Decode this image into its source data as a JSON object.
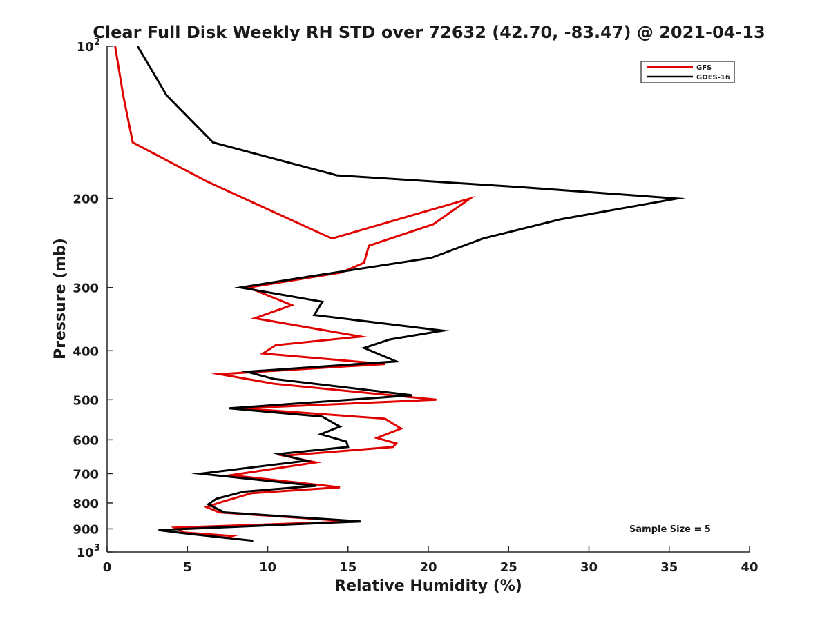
{
  "chart_data": {
    "type": "line",
    "title": "Clear Full Disk Weekly RH STD over 72632 (42.70, -83.47) @ 2021-04-13",
    "xlabel": "Relative Humidity (%)",
    "ylabel": "Pressure (mb)",
    "xlim": [
      0,
      40
    ],
    "ylim": [
      100,
      1000
    ],
    "yscale": "log",
    "y_reversed": true,
    "grid": false,
    "legend_position": "top-right",
    "x_ticks": [
      "0",
      "5",
      "10",
      "15",
      "20",
      "25",
      "30",
      "35",
      "40"
    ],
    "y_ticks": [
      {
        "value": 100,
        "base": "10",
        "exp": "2"
      },
      {
        "value": 200,
        "label": "200"
      },
      {
        "value": 300,
        "label": "300"
      },
      {
        "value": 400,
        "label": "400"
      },
      {
        "value": 500,
        "label": "500"
      },
      {
        "value": 600,
        "label": "600"
      },
      {
        "value": 700,
        "label": "700"
      },
      {
        "value": 800,
        "label": "800"
      },
      {
        "value": 900,
        "label": "900"
      },
      {
        "value": 1000,
        "base": "10",
        "exp": "3"
      }
    ],
    "series": [
      {
        "name": "GFS",
        "color": "#e00000",
        "x": [
          0.5,
          1.0,
          1.6,
          6.2,
          14.0,
          22.6,
          20.3,
          16.3,
          16.0,
          14.6,
          8.8,
          11.5,
          9.2,
          15.8,
          10.5,
          9.7,
          17.3,
          7.0,
          10.4,
          20.5,
          8.4,
          17.3,
          18.3,
          16.8,
          18.0,
          17.8,
          11.0,
          13.0,
          7.7,
          14.5,
          9.0,
          7.2,
          6.2,
          7.0,
          15.3,
          4.2,
          4.8,
          7.8,
          7.3
        ],
        "y": [
          100,
          125,
          155,
          185,
          240,
          200,
          225,
          248,
          268,
          280,
          300,
          325,
          345,
          375,
          390,
          405,
          425,
          445,
          465,
          500,
          520,
          545,
          570,
          595,
          610,
          620,
          645,
          665,
          705,
          745,
          765,
          795,
          815,
          835,
          870,
          895,
          915,
          930,
          940
        ]
      },
      {
        "name": "GOES-16",
        "color": "#000000",
        "x": [
          1.9,
          3.7,
          6.6,
          14.3,
          25.8,
          35.5,
          28.2,
          23.4,
          20.2,
          12.7,
          8.3,
          13.4,
          12.9,
          20.9,
          17.6,
          16.0,
          18.0,
          8.7,
          10.4,
          19.0,
          7.6,
          13.4,
          14.5,
          13.3,
          14.9,
          15.0,
          10.7,
          12.4,
          5.8,
          13.0,
          8.5,
          6.8,
          6.3,
          7.3,
          15.8,
          3.2,
          5.0,
          9.1
        ],
        "y": [
          100,
          125,
          155,
          180,
          190,
          200,
          220,
          240,
          262,
          285,
          300,
          320,
          340,
          365,
          380,
          395,
          420,
          440,
          455,
          490,
          520,
          540,
          565,
          585,
          605,
          620,
          640,
          660,
          700,
          740,
          760,
          785,
          805,
          835,
          870,
          905,
          920,
          950
        ]
      }
    ],
    "annotations": [
      "Sample Size = 5"
    ]
  }
}
